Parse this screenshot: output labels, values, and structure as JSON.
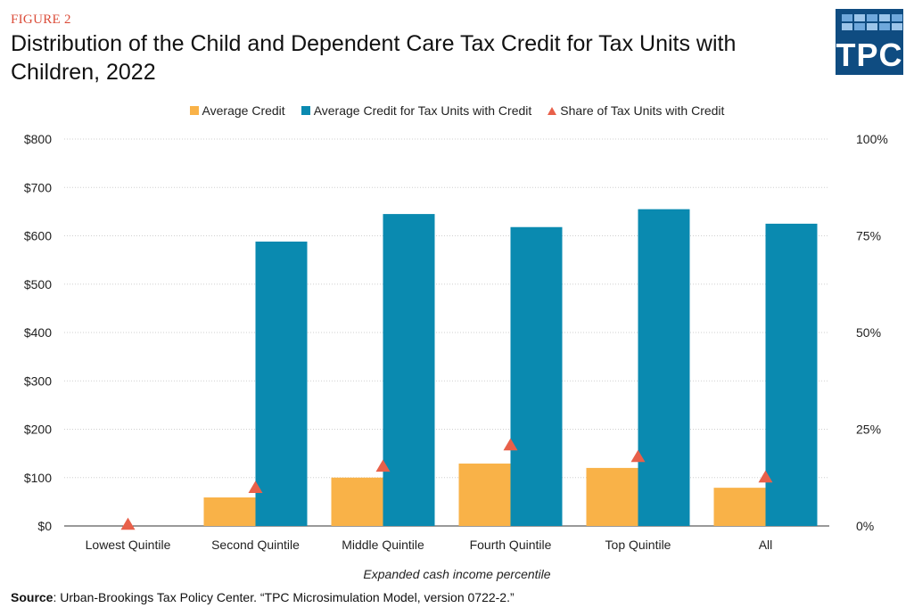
{
  "figure_label": "FIGURE 2",
  "title": "Distribution of the Child and Dependent Care Tax Credit for Tax Units with Children, 2022",
  "logo_text": "TPC",
  "source_label": "Source",
  "source_text": ": Urban-Brookings Tax Policy Center. “TPC Microsimulation Model, version 0722-2.”",
  "colors": {
    "average_credit": "#f9b248",
    "average_credit_with_credit": "#0a8ab0",
    "share": "#e8604a",
    "figure_label": "#db4d3a",
    "logo": "#0f4c81"
  },
  "chart_data": {
    "type": "bar",
    "title": "Distribution of the Child and Dependent Care Tax Credit for Tax Units with Children, 2022",
    "xlabel": "Expanded cash income percentile",
    "ylabel": "",
    "y2label": "",
    "categories": [
      "Lowest Quintile",
      "Second Quintile",
      "Middle Quintile",
      "Fourth Quintile",
      "Top Quintile",
      "All"
    ],
    "ylim": [
      0,
      800
    ],
    "y_ticks": [
      0,
      100,
      200,
      300,
      400,
      500,
      600,
      700,
      800
    ],
    "y_tick_labels": [
      "$0",
      "$100",
      "$200",
      "$300",
      "$400",
      "$500",
      "$600",
      "$700",
      "$800"
    ],
    "y2lim": [
      0,
      100
    ],
    "y2_ticks": [
      0,
      25,
      50,
      75,
      100
    ],
    "y2_tick_labels": [
      "0%",
      "25%",
      "50%",
      "75%",
      "100%"
    ],
    "grid": true,
    "legend_position": "top",
    "series": [
      {
        "name": "Average Credit",
        "type": "bar",
        "axis": "left",
        "values": [
          0,
          59,
          100,
          129,
          120,
          79
        ]
      },
      {
        "name": "Average Credit for Tax Units with Credit",
        "type": "bar",
        "axis": "left",
        "values": [
          0,
          588,
          645,
          618,
          655,
          625
        ]
      },
      {
        "name": "Share of Tax Units with Credit",
        "type": "scatter",
        "marker": "triangle",
        "axis": "right",
        "values": [
          0.5,
          10.0,
          15.5,
          21.0,
          18.0,
          12.7
        ]
      }
    ]
  }
}
